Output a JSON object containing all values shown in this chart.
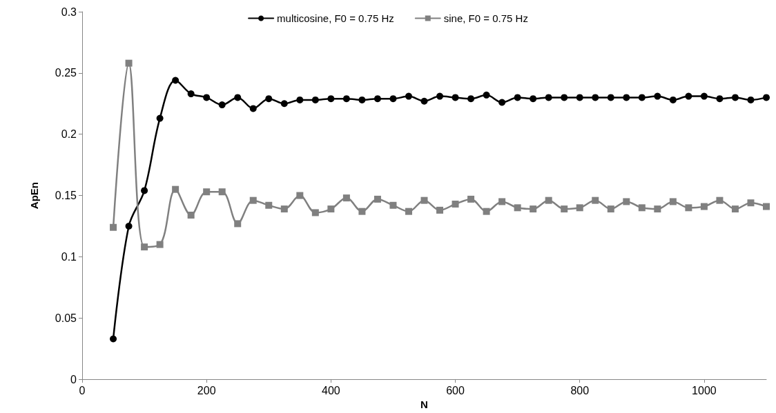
{
  "chart_data": {
    "type": "line",
    "xlabel": "N",
    "ylabel": "ApEn",
    "x": [
      50,
      75,
      100,
      125,
      150,
      175,
      200,
      225,
      250,
      275,
      300,
      325,
      350,
      375,
      400,
      425,
      450,
      475,
      500,
      525,
      550,
      575,
      600,
      625,
      650,
      675,
      700,
      725,
      750,
      775,
      800,
      825,
      850,
      875,
      900,
      925,
      950,
      975,
      1000,
      1025,
      1050,
      1075,
      1100
    ],
    "series": [
      {
        "name": "multicosine, F0 = 0.75 Hz",
        "color": "#000000",
        "marker": "circle",
        "values": [
          0.033,
          0.125,
          0.154,
          0.213,
          0.244,
          0.233,
          0.23,
          0.224,
          0.23,
          0.221,
          0.229,
          0.225,
          0.228,
          0.228,
          0.229,
          0.229,
          0.228,
          0.229,
          0.229,
          0.231,
          0.227,
          0.231,
          0.23,
          0.229,
          0.232,
          0.226,
          0.23,
          0.229,
          0.23,
          0.23,
          0.23,
          0.23,
          0.23,
          0.23,
          0.23,
          0.231,
          0.228,
          0.231,
          0.231,
          0.229,
          0.23,
          0.228,
          0.23
        ]
      },
      {
        "name": "sine, F0 = 0.75 Hz",
        "color": "#808080",
        "marker": "square",
        "values": [
          0.124,
          0.258,
          0.108,
          0.11,
          0.155,
          0.134,
          0.153,
          0.153,
          0.127,
          0.146,
          0.142,
          0.139,
          0.15,
          0.136,
          0.139,
          0.148,
          0.137,
          0.147,
          0.142,
          0.137,
          0.146,
          0.138,
          0.143,
          0.147,
          0.137,
          0.145,
          0.14,
          0.139,
          0.146,
          0.139,
          0.14,
          0.146,
          0.139,
          0.145,
          0.14,
          0.139,
          0.145,
          0.14,
          0.141,
          0.146,
          0.139,
          0.144,
          0.141
        ]
      }
    ],
    "xlim": [
      0,
      1100
    ],
    "xticks": [
      0,
      200,
      400,
      600,
      800,
      1000
    ],
    "ylim": [
      0,
      0.3
    ],
    "yticks": [
      0,
      0.05,
      0.1,
      0.15,
      0.2,
      0.25,
      0.3
    ],
    "grid": false,
    "legend": "top",
    "line_style": "solid"
  }
}
